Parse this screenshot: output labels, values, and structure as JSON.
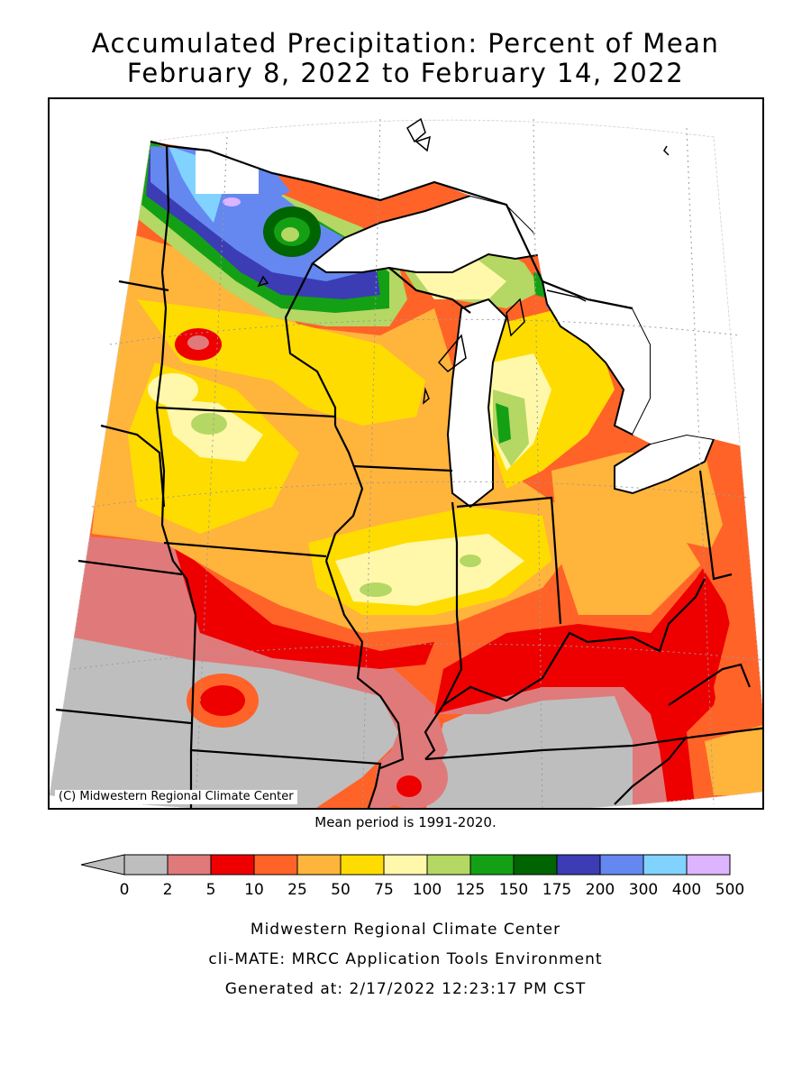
{
  "title_line1": "Accumulated Precipitation: Percent of Mean",
  "title_line2": "February 8, 2022 to February 14, 2022",
  "copyright": "(C) Midwestern Regional Climate Center",
  "mean_period": "Mean period is 1991-2020.",
  "legend": {
    "tick_labels": [
      "0",
      "2",
      "5",
      "10",
      "25",
      "50",
      "75",
      "100",
      "125",
      "150",
      "175",
      "200",
      "300",
      "400",
      "500"
    ],
    "bins": [
      {
        "range": "< 0",
        "color": "#bebebe"
      },
      {
        "range": "0-2",
        "color": "#bebebe"
      },
      {
        "range": "2-5",
        "color": "#e07a7a"
      },
      {
        "range": "5-10",
        "color": "#ee0000"
      },
      {
        "range": "10-25",
        "color": "#ff6328"
      },
      {
        "range": "25-50",
        "color": "#ffb43c"
      },
      {
        "range": "50-75",
        "color": "#ffdc00"
      },
      {
        "range": "75-100",
        "color": "#fff8aa"
      },
      {
        "range": "100-125",
        "color": "#b5d764"
      },
      {
        "range": "125-150",
        "color": "#14a014"
      },
      {
        "range": "150-175",
        "color": "#006400"
      },
      {
        "range": "175-200",
        "color": "#3c3cb4"
      },
      {
        "range": "200-300",
        "color": "#6488f0"
      },
      {
        "range": "300-400",
        "color": "#82d2ff"
      },
      {
        "range": "400-500",
        "color": "#dcb4ff"
      }
    ]
  },
  "footer": {
    "line1": "Midwestern Regional Climate Center",
    "line2": "cli-MATE: MRCC Application Tools Environment",
    "line3": "Generated at: 2/17/2022 12:23:17 PM CST"
  }
}
